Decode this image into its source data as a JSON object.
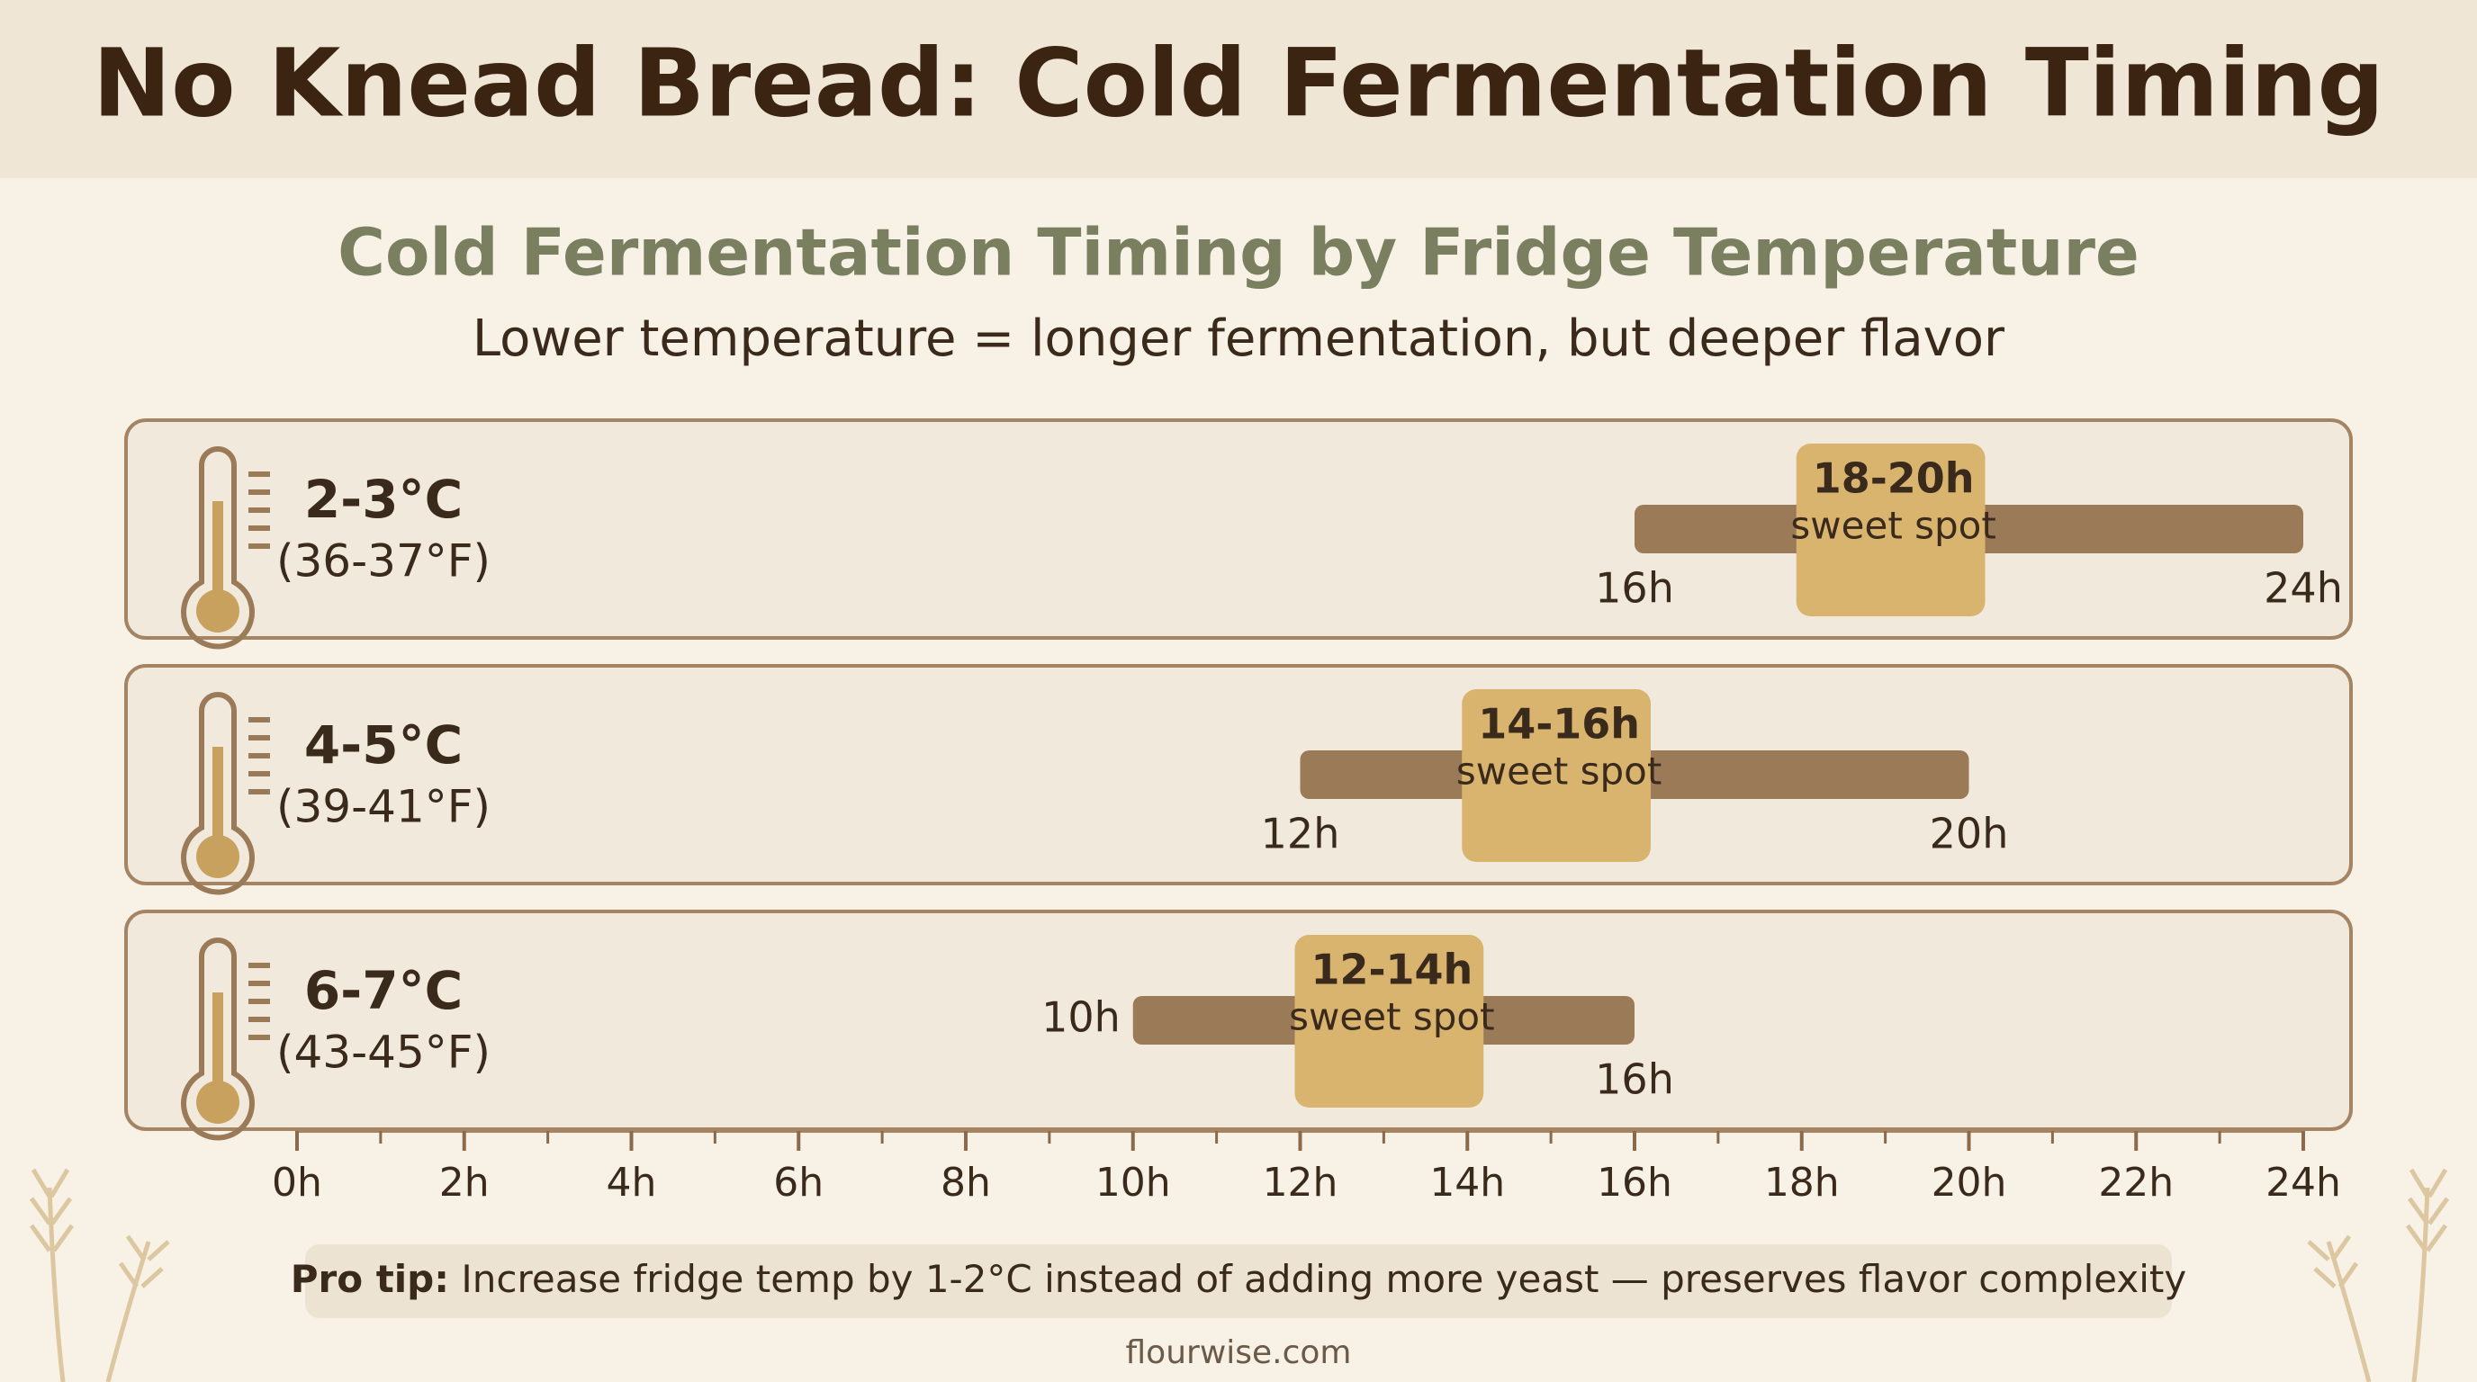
{
  "header": {
    "title": "No Knead Bread: Cold Fermentation Timing"
  },
  "chart_data": {
    "type": "range",
    "title": "Cold Fermentation Timing by Fridge Temperature",
    "subtitle": "Lower temperature = longer fermentation, but deeper flavor",
    "xlim": [
      0,
      24
    ],
    "xticks": [
      {
        "value": 0,
        "label": "0h"
      },
      {
        "value": 2,
        "label": "2h"
      },
      {
        "value": 4,
        "label": "4h"
      },
      {
        "value": 6,
        "label": "6h"
      },
      {
        "value": 8,
        "label": "8h"
      },
      {
        "value": 10,
        "label": "10h"
      },
      {
        "value": 12,
        "label": "12h"
      },
      {
        "value": 14,
        "label": "14h"
      },
      {
        "value": 16,
        "label": "16h"
      },
      {
        "value": 18,
        "label": "18h"
      },
      {
        "value": 20,
        "label": "20h"
      },
      {
        "value": 22,
        "label": "22h"
      },
      {
        "value": 24,
        "label": "24h"
      }
    ],
    "minor_xticks": [
      1,
      3,
      5,
      7,
      9,
      11,
      13,
      15,
      17,
      19,
      21,
      23
    ],
    "bar_color": "#9b7a58",
    "sweet_spot_color": "#d9b46e",
    "rows": [
      {
        "label": "2-3°C",
        "sublabel": "(36-37°F)",
        "range": [
          16,
          24
        ],
        "range_labels": [
          "16h",
          "24h"
        ],
        "sweet_spot": [
          18,
          20
        ],
        "sweet_spot_label": "18-20h",
        "sweet_spot_text": "sweet spot"
      },
      {
        "label": "4-5°C",
        "sublabel": "(39-41°F)",
        "range": [
          12,
          20
        ],
        "range_labels": [
          "12h",
          "20h"
        ],
        "sweet_spot": [
          14,
          16
        ],
        "sweet_spot_label": "14-16h",
        "sweet_spot_text": "sweet spot"
      },
      {
        "label": "6-7°C",
        "sublabel": "(43-45°F)",
        "range": [
          10,
          16
        ],
        "range_labels": [
          "10h",
          "16h"
        ],
        "sweet_spot": [
          12,
          14
        ],
        "sweet_spot_label": "12-14h",
        "sweet_spot_text": "sweet spot"
      }
    ]
  },
  "tip": {
    "label": "Pro tip:",
    "text": "Increase fridge temp by 1-2°C instead of adding more yeast — preserves flavor complexity"
  },
  "footer": "flourwise.com"
}
